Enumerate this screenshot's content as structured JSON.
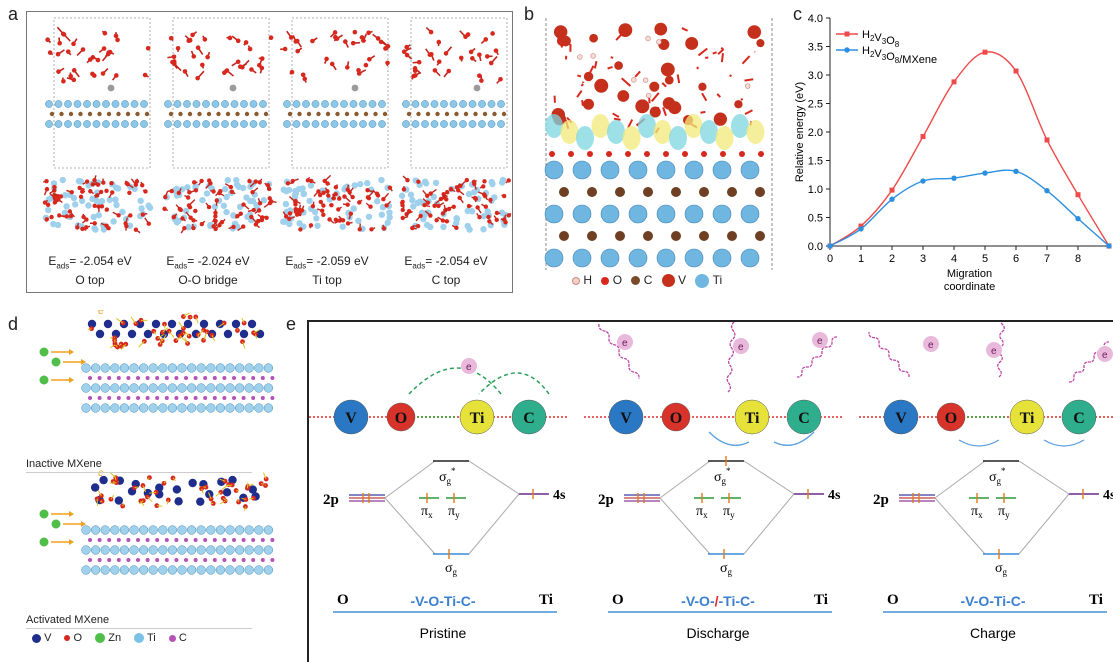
{
  "panel_a": {
    "letter": "a",
    "items": [
      {
        "energy": "-2.054 eV",
        "site": "O top"
      },
      {
        "energy": "-2.024 eV",
        "site": "O-O bridge"
      },
      {
        "energy": "-2.059 eV",
        "site": "Ti top"
      },
      {
        "energy": "-2.054 eV",
        "site": "C top"
      }
    ]
  },
  "panel_b": {
    "letter": "b",
    "legend": [
      {
        "label": "H",
        "color": "#f2d0c8"
      },
      {
        "label": "O",
        "color": "#d8281e"
      },
      {
        "label": "C",
        "color": "#7a4a2a"
      },
      {
        "label": "V",
        "color": "#c4301c"
      },
      {
        "label": "Ti",
        "color": "#6fb7e0"
      }
    ]
  },
  "panel_d": {
    "letter": "d",
    "top_label": "Inactive MXene",
    "bottom_label": "Activated MXene",
    "legend": [
      {
        "label": "V",
        "color": "#1f2d8c"
      },
      {
        "label": "O",
        "color": "#d8281e"
      },
      {
        "label": "Zn",
        "color": "#4fbf4a"
      },
      {
        "label": "Ti",
        "color": "#7cc2e6"
      },
      {
        "label": "C",
        "color": "#b552b8"
      }
    ]
  },
  "panel_e": {
    "letter": "e",
    "atoms": [
      {
        "label": "V",
        "color": "#2a78c4"
      },
      {
        "label": "O",
        "color": "#d8332a"
      },
      {
        "label": "Ti",
        "color": "#e6e23a"
      },
      {
        "label": "C",
        "color": "#2fae8e"
      }
    ],
    "electron": "e",
    "orb_2p": "2p",
    "orb_4s": "4s",
    "sigma": "σ",
    "pi": "π",
    "star": "*",
    "sub_g": "g",
    "sub_x": "x",
    "sub_y": "y",
    "left_atom": "O",
    "right_atom": "Ti",
    "states": [
      {
        "label": "Pristine",
        "chain": "-V-O-Ti-C-"
      },
      {
        "label": "Discharge",
        "chain_a": "-V-O-",
        "chain_b": "/",
        "chain_c": "-Ti-C-"
      },
      {
        "label": "Charge",
        "chain": "-V-O-Ti-C-"
      }
    ]
  },
  "chart_data": {
    "type": "line",
    "panel_letter": "c",
    "xlabel": "Migration coordinate",
    "ylabel": "Relative energy (eV)",
    "xlim": [
      0,
      9
    ],
    "ylim": [
      0,
      4.0
    ],
    "xticks": [
      "0",
      "1",
      "2",
      "3",
      "4",
      "5",
      "6",
      "7",
      "8"
    ],
    "yticks": [
      "0.0",
      "0.5",
      "1.0",
      "1.5",
      "2.0",
      "2.5",
      "3.0",
      "3.5",
      "4.0"
    ],
    "legend_position": "top-left",
    "series": [
      {
        "name": "H2V3O8",
        "color": "#ef4a4a",
        "marker": "square",
        "x": [
          0,
          1,
          2,
          3,
          4,
          5,
          6,
          7,
          8,
          9
        ],
        "y": [
          0.0,
          0.35,
          0.98,
          1.92,
          2.88,
          3.4,
          3.07,
          1.86,
          0.9,
          0.0
        ]
      },
      {
        "name": "H2V3O8/MXene",
        "color": "#2d8fe0",
        "marker": "circle",
        "x": [
          0,
          1,
          2,
          3,
          4,
          5,
          6,
          7,
          8,
          9
        ],
        "y": [
          0.0,
          0.3,
          0.82,
          1.14,
          1.19,
          1.28,
          1.31,
          0.97,
          0.48,
          0.0
        ]
      }
    ]
  }
}
